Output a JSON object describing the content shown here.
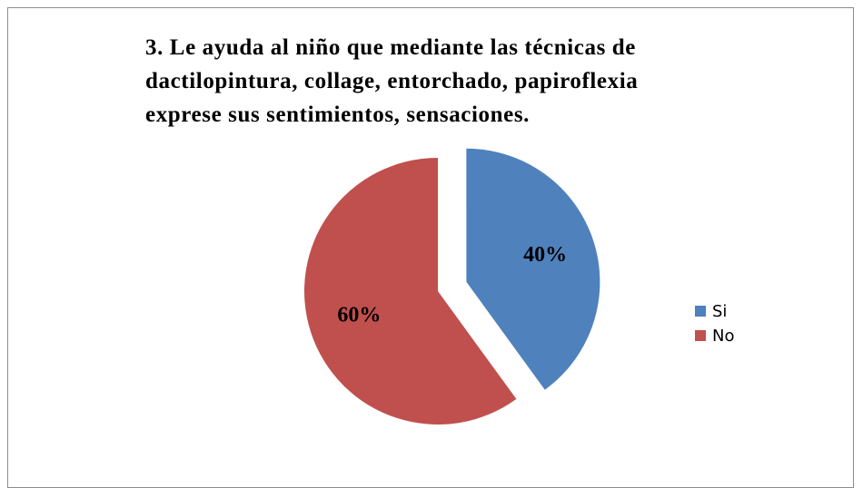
{
  "chart_data": {
    "type": "pie",
    "title": "3. Le ayuda al niño que mediante las técnicas de dactilopintura, collage, entorchado, papiroflexia exprese sus sentimientos, sensaciones.",
    "categories": [
      "Si",
      "No"
    ],
    "values": [
      40,
      60
    ],
    "value_labels": [
      "40%",
      "60%"
    ],
    "colors": [
      "#4f81bd",
      "#c0504d"
    ],
    "legend": "right"
  }
}
